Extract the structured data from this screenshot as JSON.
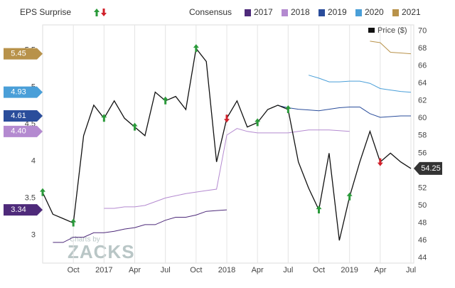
{
  "chart_data": {
    "type": "line",
    "surprise_label": "EPS Surprise",
    "consensus_label": "Consensus",
    "xlim": [
      "2016-07",
      "2019-07"
    ],
    "xticks": [
      {
        "value": "2016-10",
        "label": "Oct"
      },
      {
        "value": "2017-01",
        "label": "2017"
      },
      {
        "value": "2017-04",
        "label": "Apr"
      },
      {
        "value": "2017-07",
        "label": "Jul"
      },
      {
        "value": "2017-10",
        "label": "Oct"
      },
      {
        "value": "2018-01",
        "label": "2018"
      },
      {
        "value": "2018-04",
        "label": "Apr"
      },
      {
        "value": "2018-07",
        "label": "Jul"
      },
      {
        "value": "2018-10",
        "label": "Oct"
      },
      {
        "value": "2019-01",
        "label": "2019"
      },
      {
        "value": "2019-04",
        "label": "Apr"
      },
      {
        "value": "2019-07",
        "label": "Jul"
      }
    ],
    "ylim": [
      2.62,
      5.84
    ],
    "yticks": [
      3,
      3.5,
      4,
      4.5,
      5,
      5.5
    ],
    "y2lim": [
      43.4,
      70.7
    ],
    "y2ticks": [
      44,
      46,
      48,
      50,
      52,
      54,
      56,
      58,
      60,
      62,
      64,
      66,
      68,
      70
    ],
    "grid": true,
    "series": [
      {
        "name": "2017",
        "color": "#4e2a7a",
        "axis": "y",
        "end_label": "3.34",
        "x": [
          "2016-08",
          "2016-09",
          "2016-10",
          "2016-11",
          "2016-12",
          "2017-01",
          "2017-02",
          "2017-03",
          "2017-04",
          "2017-05",
          "2017-06",
          "2017-07",
          "2017-08",
          "2017-09",
          "2017-10",
          "2017-11",
          "2017-12",
          "2018-01"
        ],
        "values": [
          2.9,
          2.9,
          2.97,
          2.97,
          3.03,
          3.03,
          3.05,
          3.08,
          3.1,
          3.14,
          3.14,
          3.2,
          3.24,
          3.24,
          3.27,
          3.32,
          3.33,
          3.34
        ]
      },
      {
        "name": "2018",
        "color": "#b48ad0",
        "axis": "y",
        "end_label": "4.40",
        "x": [
          "2017-01",
          "2017-02",
          "2017-03",
          "2017-04",
          "2017-05",
          "2017-06",
          "2017-07",
          "2017-08",
          "2017-09",
          "2017-10",
          "2017-11",
          "2017-12",
          "2018-01",
          "2018-02",
          "2018-03",
          "2018-04",
          "2018-05",
          "2018-06",
          "2018-07",
          "2018-08",
          "2018-09",
          "2018-10",
          "2018-11",
          "2018-12",
          "2019-01"
        ],
        "values": [
          3.36,
          3.36,
          3.38,
          3.38,
          3.4,
          3.45,
          3.5,
          3.53,
          3.56,
          3.58,
          3.6,
          3.62,
          4.35,
          4.44,
          4.4,
          4.38,
          4.38,
          4.38,
          4.38,
          4.4,
          4.42,
          4.42,
          4.42,
          4.41,
          4.4
        ]
      },
      {
        "name": "2019",
        "color": "#2a4d9b",
        "axis": "y",
        "end_label": "4.61",
        "x": [
          "2018-06",
          "2018-07",
          "2018-08",
          "2018-09",
          "2018-10",
          "2018-11",
          "2018-12",
          "2019-01",
          "2019-02",
          "2019-03",
          "2019-04",
          "2019-05",
          "2019-06",
          "2019-07"
        ],
        "values": [
          4.75,
          4.72,
          4.7,
          4.69,
          4.68,
          4.7,
          4.72,
          4.73,
          4.73,
          4.64,
          4.59,
          4.6,
          4.61,
          4.61
        ]
      },
      {
        "name": "2020",
        "color": "#4a9fd8",
        "axis": "y",
        "end_label": "4.93",
        "x": [
          "2018-09",
          "2018-10",
          "2018-11",
          "2018-12",
          "2019-01",
          "2019-02",
          "2019-03",
          "2019-04",
          "2019-05",
          "2019-06",
          "2019-07"
        ],
        "values": [
          5.16,
          5.12,
          5.07,
          5.07,
          5.08,
          5.08,
          5.05,
          4.98,
          4.96,
          4.94,
          4.93
        ]
      },
      {
        "name": "2021",
        "color": "#b8924a",
        "axis": "y",
        "end_label": "5.45",
        "x": [
          "2019-03",
          "2019-04",
          "2019-05",
          "2019-06",
          "2019-07"
        ],
        "values": [
          5.62,
          5.6,
          5.47,
          5.46,
          5.45
        ]
      },
      {
        "name": "Price ($)",
        "color": "#111111",
        "axis": "y2",
        "end_label": "54.25",
        "x": [
          "2016-07",
          "2016-08",
          "2016-09",
          "2016-10",
          "2016-11",
          "2016-12",
          "2017-01",
          "2017-02",
          "2017-03",
          "2017-04",
          "2017-05",
          "2017-06",
          "2017-07",
          "2017-08",
          "2017-09",
          "2017-10",
          "2017-11",
          "2017-12",
          "2018-01",
          "2018-02",
          "2018-03",
          "2018-04",
          "2018-05",
          "2018-06",
          "2018-07",
          "2018-08",
          "2018-09",
          "2018-10",
          "2018-11",
          "2018-12",
          "2019-01",
          "2019-02",
          "2019-03",
          "2019-04",
          "2019-05",
          "2019-06",
          "2019-07"
        ],
        "values": [
          51.5,
          49,
          48.5,
          48,
          58,
          61.5,
          60,
          62,
          60,
          59,
          58,
          63,
          62,
          62.5,
          61,
          68,
          66.5,
          55,
          60,
          62,
          59,
          59.5,
          61,
          61.5,
          61,
          55,
          52,
          49.5,
          56,
          46,
          51,
          55,
          58.5,
          55,
          56,
          55,
          54.25
        ]
      }
    ],
    "surprises": [
      {
        "date": "2016-07",
        "direction": "up"
      },
      {
        "date": "2016-10",
        "direction": "up"
      },
      {
        "date": "2017-01",
        "direction": "up"
      },
      {
        "date": "2017-04",
        "direction": "up"
      },
      {
        "date": "2017-07",
        "direction": "up"
      },
      {
        "date": "2017-10",
        "direction": "up"
      },
      {
        "date": "2018-01",
        "direction": "down"
      },
      {
        "date": "2018-04",
        "direction": "up"
      },
      {
        "date": "2018-07",
        "direction": "up"
      },
      {
        "date": "2018-10",
        "direction": "up"
      },
      {
        "date": "2019-01",
        "direction": "up"
      },
      {
        "date": "2019-04",
        "direction": "down"
      }
    ],
    "watermark": {
      "line1": "Charts by",
      "line2": "ZACKS"
    }
  }
}
